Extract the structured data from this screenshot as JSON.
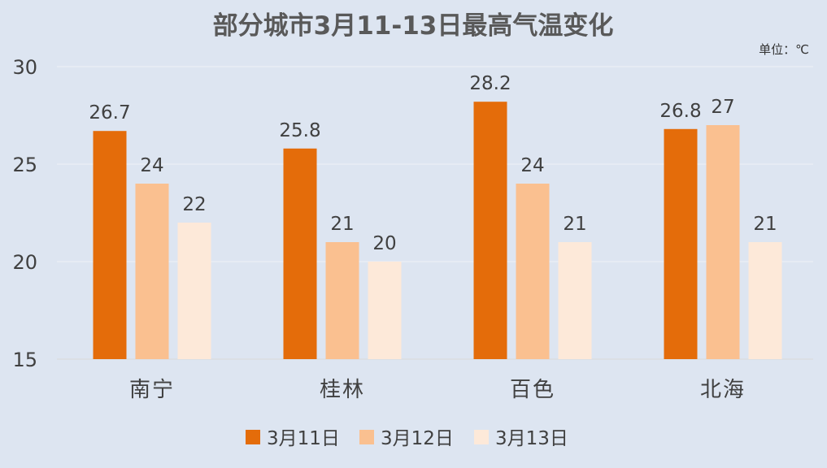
{
  "chart_data": {
    "type": "bar",
    "title": "部分城市3月11-13日最高气温变化",
    "unit_label": "单位：℃",
    "categories": [
      "南宁",
      "桂林",
      "百色",
      "北海"
    ],
    "series": [
      {
        "name": "3月11日",
        "color": "#e46c0a",
        "values": [
          26.7,
          25.8,
          28.2,
          26.8
        ]
      },
      {
        "name": "3月12日",
        "color": "#fac090",
        "values": [
          24,
          21,
          24,
          27
        ]
      },
      {
        "name": "3月13日",
        "color": "#fde9d9",
        "values": [
          22,
          20,
          21,
          21
        ]
      }
    ],
    "ylim": [
      15,
      30
    ],
    "yticks": [
      15,
      20,
      25,
      30
    ],
    "grid": true,
    "legend": "bottom",
    "data_labels": true
  }
}
